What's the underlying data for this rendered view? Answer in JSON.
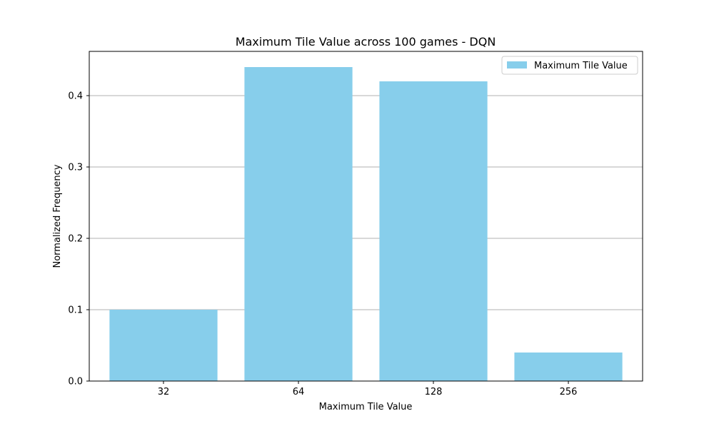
{
  "chart_data": {
    "type": "bar",
    "title": "Maximum Tile Value across 100 games - DQN",
    "xlabel": "Maximum Tile Value",
    "ylabel": "Normalized Frequency",
    "categories": [
      "32",
      "64",
      "128",
      "256"
    ],
    "series": [
      {
        "name": "Maximum Tile Value",
        "values": [
          0.1,
          0.44,
          0.42,
          0.04
        ]
      }
    ],
    "ylim": [
      0,
      0.462
    ],
    "yticks": [
      0.0,
      0.1,
      0.2,
      0.3,
      0.4
    ],
    "ytick_labels": [
      "0.0",
      "0.1",
      "0.2",
      "0.3",
      "0.4"
    ],
    "grid": "y",
    "legend_position": "top-right",
    "colors": {
      "bar": "#87ceeb",
      "grid": "#b0b0b0",
      "axis": "#000000"
    }
  }
}
